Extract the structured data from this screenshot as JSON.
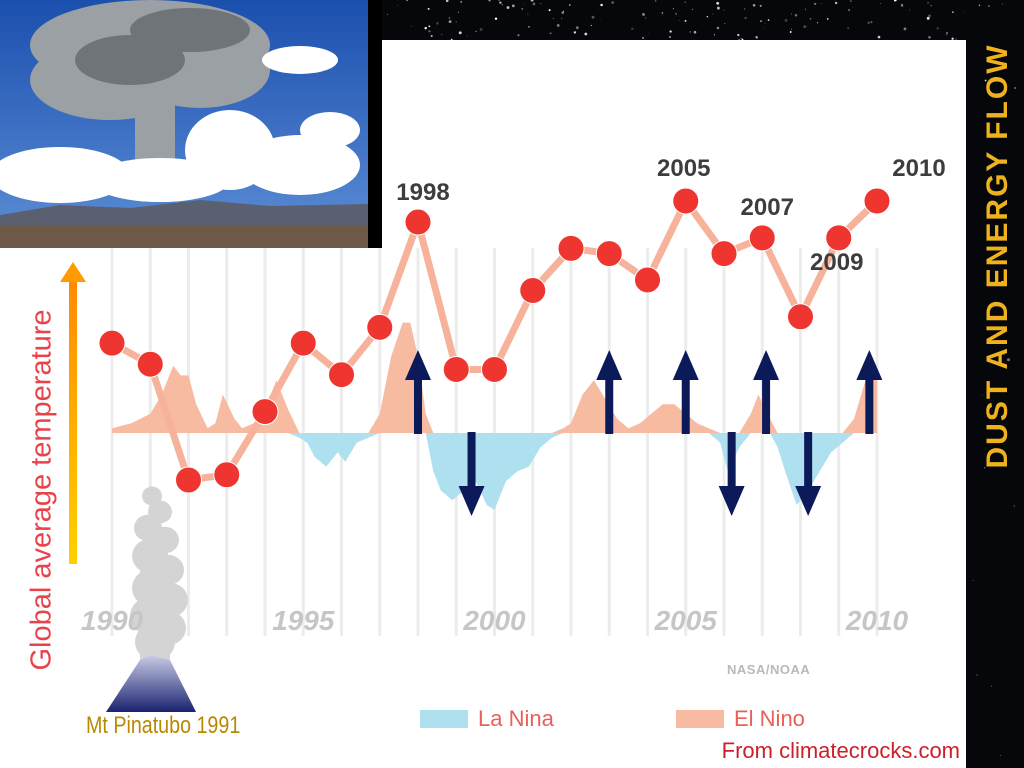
{
  "slide": {
    "side_title": "DUST AND ENERGY FLOW",
    "volcano_label": "Mt Pinatubo 1991",
    "credit": "From climatecrocks.com",
    "source": "NASA/NOAA"
  },
  "colors": {
    "point": "#ee3530",
    "line": "#f6b29b",
    "el_nino": "#f7bba2",
    "la_nina": "#aee0ef",
    "arrow": "#0c1a5a",
    "y_arrow": "#ffc400",
    "grid": "#ececec"
  },
  "chart_data": {
    "type": "line",
    "title": "",
    "xlabel": "",
    "ylabel": "Global average temperature",
    "xlim": [
      1990,
      2010
    ],
    "x_ticks": [
      1990,
      1995,
      2000,
      2005,
      2010
    ],
    "x_tick_labels": [
      "1990",
      "1995",
      "2000",
      "2005",
      "2010"
    ],
    "grid_vertical": true,
    "series": [
      {
        "name": "",
        "x": [
          1990,
          1991,
          1992,
          1993,
          1994,
          1995,
          1996,
          1997,
          1998,
          1999,
          2000,
          2001,
          2002,
          2003,
          2004,
          2005,
          2006,
          2007,
          2008,
          2009,
          2010
        ],
        "values": [
          0.4,
          0.36,
          0.14,
          0.15,
          0.27,
          0.4,
          0.34,
          0.43,
          0.63,
          0.35,
          0.35,
          0.5,
          0.58,
          0.57,
          0.52,
          0.67,
          0.57,
          0.6,
          0.45,
          0.6,
          0.67
        ]
      }
    ],
    "point_labels": [
      {
        "x": 1998,
        "text": "1998"
      },
      {
        "x": 2005,
        "text": "2005"
      },
      {
        "x": 2007,
        "text": "2007"
      },
      {
        "x": 2009,
        "text": "2009"
      },
      {
        "x": 2010,
        "text": "2010"
      }
    ],
    "enso_index": {
      "x": [
        1990.0,
        1990.5,
        1991.0,
        1991.3,
        1991.6,
        1991.8,
        1992.0,
        1992.2,
        1992.5,
        1992.7,
        1992.9,
        1993.2,
        1993.4,
        1993.7,
        1994.0,
        1994.3,
        1994.6,
        1994.9,
        1995.1,
        1995.3,
        1995.6,
        1995.9,
        1996.1,
        1996.4,
        1996.7,
        1997.0,
        1997.3,
        1997.6,
        1997.8,
        1998.0,
        1998.2,
        1998.4,
        1998.6,
        1998.9,
        1999.2,
        1999.5,
        1999.8,
        2000.0,
        2000.3,
        2000.6,
        2000.9,
        2001.2,
        2001.5,
        2001.8,
        2002.0,
        2002.3,
        2002.6,
        2002.9,
        2003.2,
        2003.5,
        2003.8,
        2004.1,
        2004.4,
        2004.7,
        2005.0,
        2005.3,
        2005.6,
        2005.9,
        2006.1,
        2006.4,
        2006.7,
        2006.9,
        2007.2,
        2007.4,
        2007.6,
        2007.9,
        2008.2,
        2008.5,
        2008.8,
        2009.1,
        2009.4,
        2009.7,
        2010.0
      ],
      "values": [
        0.1,
        0.2,
        0.4,
        0.8,
        1.4,
        1.2,
        1.2,
        0.6,
        0.1,
        0.2,
        0.8,
        0.3,
        0.1,
        0.2,
        0.5,
        1.1,
        0.5,
        -0.1,
        -0.2,
        -0.5,
        -0.7,
        -0.4,
        -0.6,
        -0.2,
        -0.1,
        0.4,
        1.6,
        2.3,
        2.3,
        1.6,
        0.4,
        -0.8,
        -1.2,
        -1.4,
        -1.2,
        -1.0,
        -1.5,
        -1.6,
        -1.0,
        -0.8,
        -0.7,
        -0.3,
        -0.1,
        0.1,
        0.2,
        0.8,
        1.1,
        0.7,
        0.3,
        0.1,
        0.2,
        0.4,
        0.6,
        0.6,
        0.4,
        0.2,
        0.1,
        -0.2,
        -0.8,
        -0.3,
        0.4,
        0.8,
        0.3,
        -0.3,
        -0.8,
        -1.5,
        -1.2,
        -0.8,
        -0.4,
        -0.2,
        0.3,
        1.1,
        1.3
      ]
    },
    "enso_legend": [
      {
        "name": "La Nina",
        "color": "#aee0ef"
      },
      {
        "name": "El Nino",
        "color": "#f7bba2"
      }
    ],
    "energy_arrows": [
      {
        "x": 1998.0,
        "direction": "up"
      },
      {
        "x": 1999.4,
        "direction": "down"
      },
      {
        "x": 2003.0,
        "direction": "up"
      },
      {
        "x": 2005.0,
        "direction": "up"
      },
      {
        "x": 2006.2,
        "direction": "down"
      },
      {
        "x": 2007.1,
        "direction": "up"
      },
      {
        "x": 2008.2,
        "direction": "down"
      },
      {
        "x": 2009.8,
        "direction": "up"
      }
    ]
  }
}
